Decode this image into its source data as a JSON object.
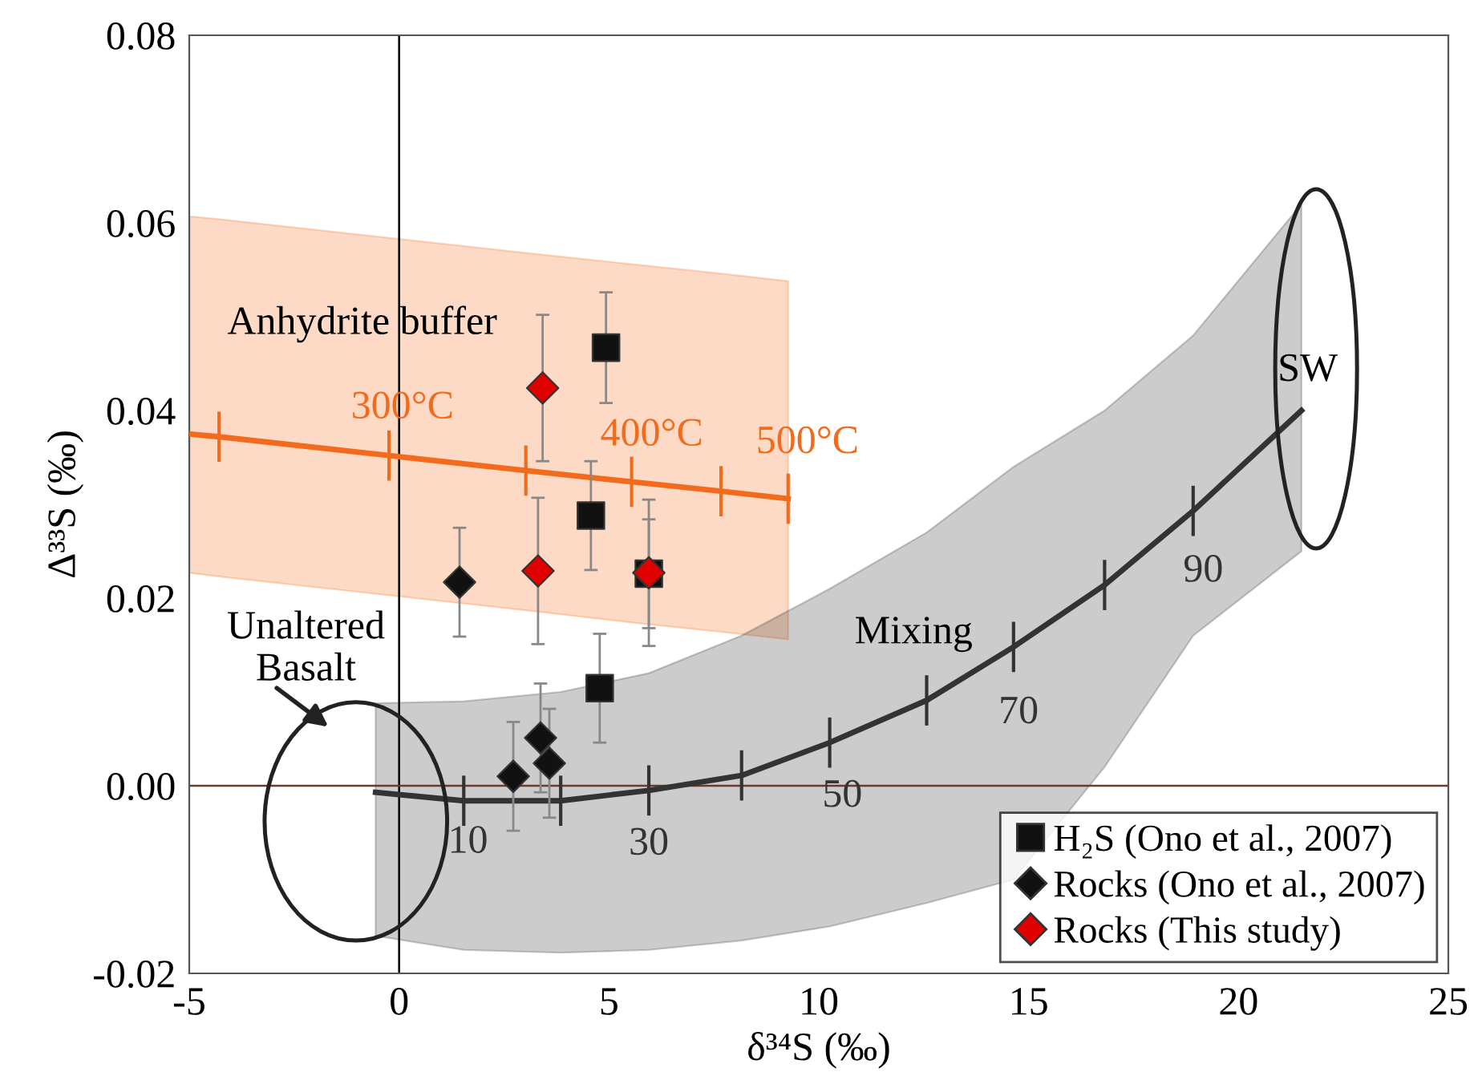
{
  "chart_data": {
    "type": "scatter",
    "xlabel": "δ³⁴S (‰)",
    "ylabel": "Δ³³S (‰)",
    "xlim": [
      -5,
      25
    ],
    "ylim": [
      -0.02,
      0.08
    ],
    "xticks": [
      -5,
      0,
      5,
      10,
      15,
      20,
      25
    ],
    "yticks": [
      {
        "value": -0.02,
        "label": "-0.02"
      },
      {
        "value": 0,
        "label": "0.00"
      },
      {
        "value": 0.02,
        "label": "0.02"
      },
      {
        "value": 0.04,
        "label": "0.04"
      },
      {
        "value": 0.06,
        "label": "0.06"
      },
      {
        "value": 0.08,
        "label": "0.08"
      }
    ],
    "grid": false,
    "legend": "bottom right",
    "ref_lines": [
      {
        "axis": "x",
        "value": 0,
        "color": "#000000"
      },
      {
        "axis": "y",
        "value": 0,
        "color": "#6b3a2a"
      }
    ],
    "series": [
      {
        "type": "line",
        "color": "#f26b1d",
        "x": [
          -5,
          -4.29,
          -0.24,
          3.02,
          5.54,
          7.67,
          9.27
        ],
        "values": [
          0.0375,
          0.0372,
          0.0352,
          0.0336,
          0.0324,
          0.0314,
          0.0306
        ],
        "lower": [
          0.0227,
          0.0223,
          0.0203,
          0.0187,
          0.0174,
          0.0164,
          0.0156
        ],
        "upper": [
          0.0607,
          0.0604,
          0.0584,
          0.0568,
          0.0556,
          0.0546,
          0.0538
        ]
      },
      {
        "type": "line",
        "color": "#333333",
        "x": [
          -0.56,
          1.54,
          3.85,
          5.95,
          8.16,
          10.26,
          12.57,
          14.64,
          16.81,
          18.92,
          21.5
        ],
        "values": [
          -0.0007,
          -0.0016,
          -0.0016,
          -0.0005,
          0.0011,
          0.0046,
          0.0091,
          0.0148,
          0.0214,
          0.0293,
          0.04
        ],
        "lower": [
          -0.016,
          -0.0175,
          -0.0178,
          -0.0175,
          -0.0165,
          -0.015,
          -0.0125,
          -0.01,
          0.002,
          0.016,
          0.025
        ],
        "upper": [
          0.0088,
          0.009,
          0.01,
          0.012,
          0.016,
          0.021,
          0.027,
          0.034,
          0.04,
          0.048,
          0.062
        ]
      },
      {
        "name": "H₂S (Ono et al., 2007)",
        "color": "#111111",
        "marker": "square",
        "x": [
          4.93,
          4.57,
          4.78,
          5.95
        ],
        "values": [
          0.0467,
          0.0288,
          0.0104,
          0.0226
        ],
        "errors": [
          0.0059,
          0.0058,
          0.0058,
          0.0058
        ]
      },
      {
        "name": "Rocks (Ono et al., 2007)",
        "color": "#111111",
        "marker": "diamond",
        "x": [
          1.44,
          3.37,
          3.58,
          2.72
        ],
        "values": [
          0.0217,
          0.0051,
          0.0024,
          0.001
        ],
        "errors": [
          0.0058,
          0.0058,
          0.0058,
          0.0058
        ]
      },
      {
        "name": "Rocks (This study)",
        "color": "#e00000",
        "marker": "diamond",
        "x": [
          3.42,
          3.31,
          5.95
        ],
        "values": [
          0.0424,
          0.0229,
          0.0227
        ],
        "errors": [
          0.0078,
          0.0078,
          0.0078
        ]
      }
    ],
    "annotations": [
      "Anhydrite buffer",
      "300°C",
      "400°C",
      "500°C",
      "Unaltered\nBasalt",
      "SW",
      "Mixing",
      "10",
      "30",
      "50",
      "70",
      "90"
    ]
  }
}
